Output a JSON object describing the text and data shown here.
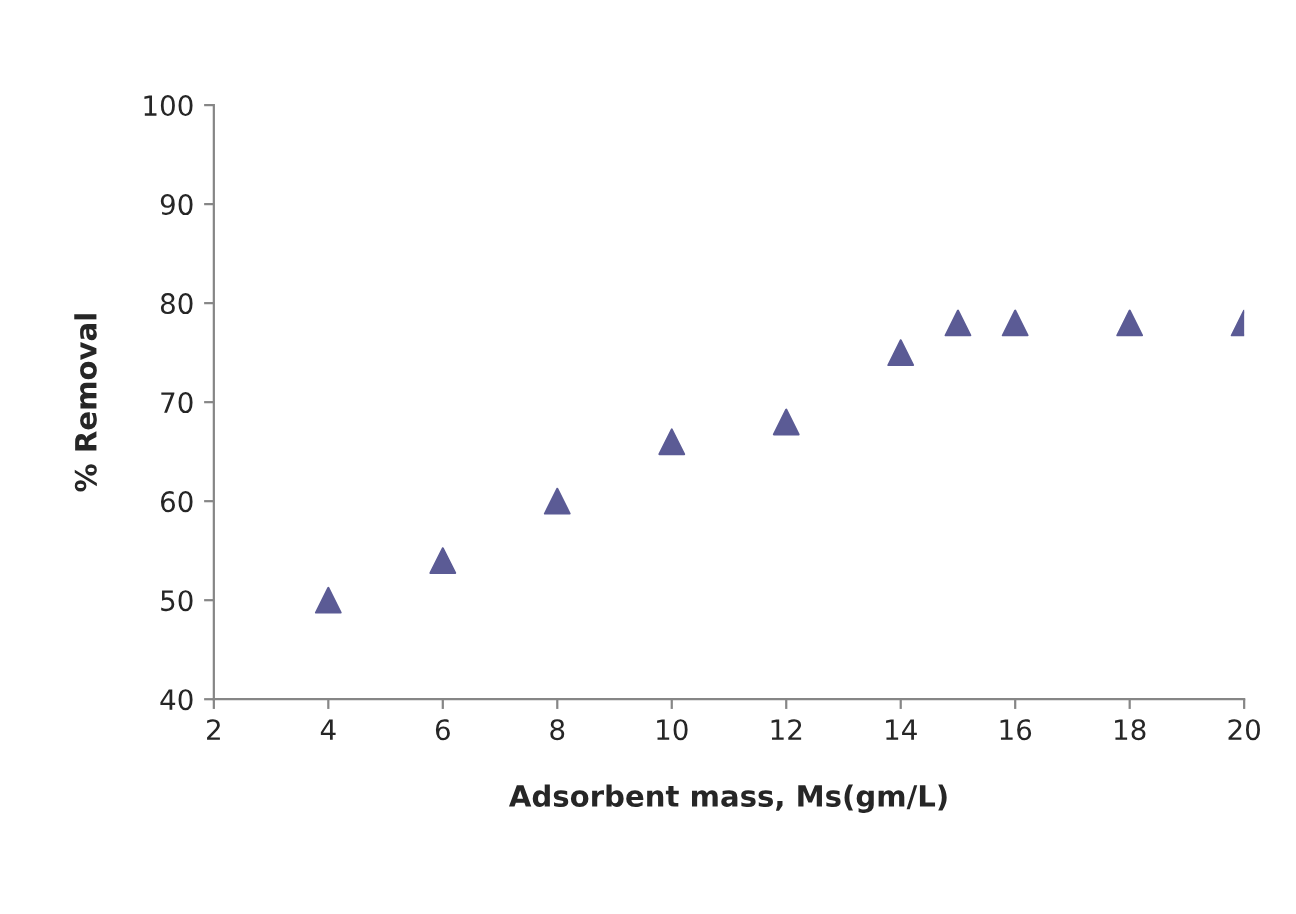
{
  "chart_data": {
    "type": "scatter",
    "xlabel": "Adsorbent mass, Ms(gm/L)",
    "ylabel": "% Removal",
    "x": [
      4,
      6,
      8,
      10,
      12,
      14,
      15,
      16,
      18,
      20
    ],
    "series": [
      {
        "color": "#5b5b95",
        "values": [
          50,
          54,
          60,
          66,
          68,
          75,
          78,
          78,
          78,
          78
        ]
      }
    ],
    "xlim": [
      2,
      20
    ],
    "xticks": [
      2,
      4,
      6,
      8,
      10,
      12,
      14,
      16,
      18,
      20
    ],
    "ylim": [
      40,
      100
    ],
    "yticks": [
      40,
      50,
      60,
      70,
      80,
      90,
      100
    ],
    "grid": false,
    "legend": false,
    "marker": "triangle"
  }
}
